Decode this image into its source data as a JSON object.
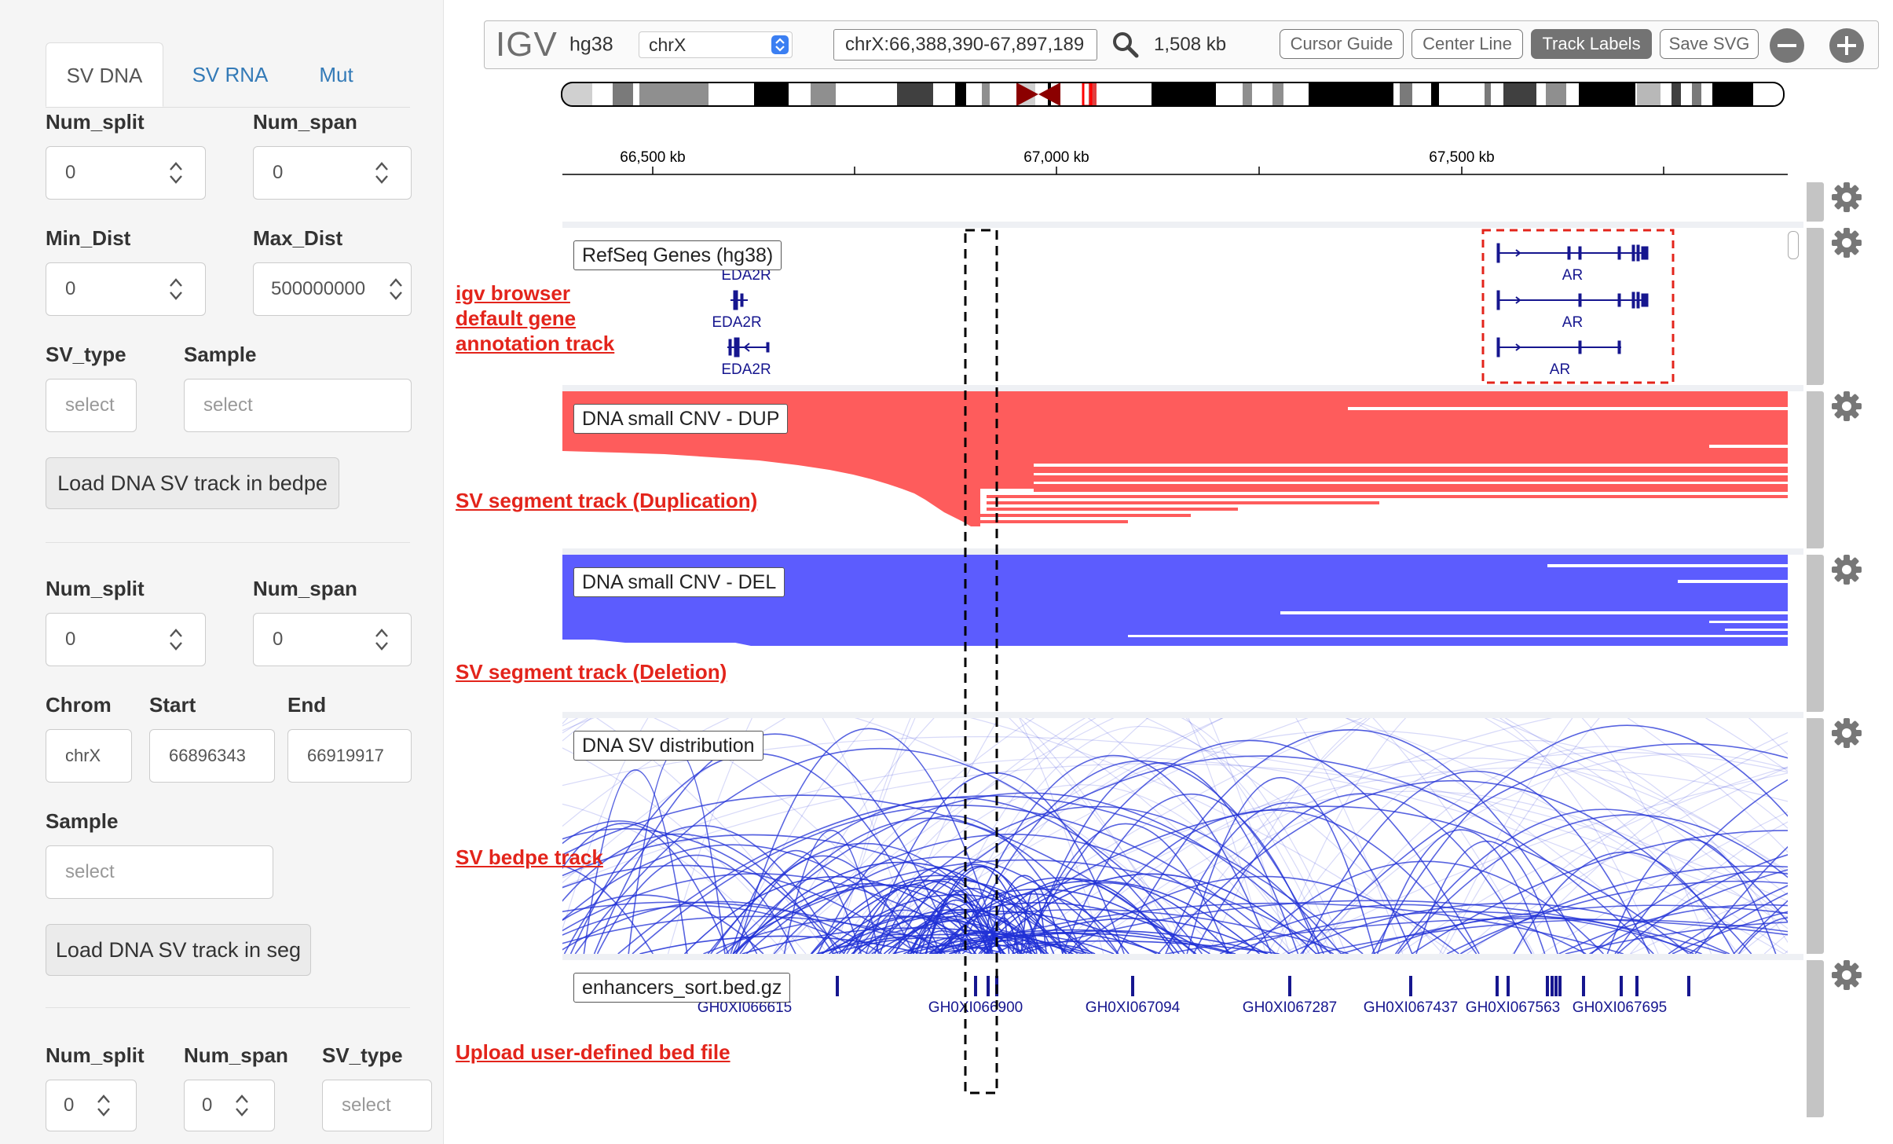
{
  "sidebar": {
    "tabs": [
      {
        "label": "SV DNA",
        "active": true
      },
      {
        "label": "SV RNA",
        "active": false
      },
      {
        "label": "Mut",
        "active": false
      }
    ],
    "section1": {
      "num_split_label": "Num_split",
      "num_split_value": "0",
      "num_span_label": "Num_span",
      "num_span_value": "0",
      "min_dist_label": "Min_Dist",
      "min_dist_value": "0",
      "max_dist_label": "Max_Dist",
      "max_dist_value": "500000000",
      "sv_type_label": "SV_type",
      "sv_type_placeholder": "select",
      "sample_label": "Sample",
      "sample_placeholder": "select",
      "load_button": "Load DNA SV track in bedpe"
    },
    "section2": {
      "num_split_label": "Num_split",
      "num_split_value": "0",
      "num_span_label": "Num_span",
      "num_span_value": "0",
      "chrom_label": "Chrom",
      "chrom_value": "chrX",
      "start_label": "Start",
      "start_value": "66896343",
      "end_label": "End",
      "end_value": "66919917",
      "sample_label": "Sample",
      "sample_placeholder": "select",
      "load_button": "Load DNA SV track in seg"
    },
    "section3": {
      "num_split_label": "Num_split",
      "num_split_value": "0",
      "num_span_label": "Num_span",
      "num_span_value": "0",
      "sv_type_label": "SV_type",
      "sv_type_placeholder": "select"
    }
  },
  "igv": {
    "logo": "IGV",
    "genome": "hg38",
    "chromosome": "chrX",
    "locus": "chrX:66,388,390-67,897,189",
    "width_label": "1,508 kb",
    "buttons": [
      {
        "label": "Cursor Guide",
        "active": false
      },
      {
        "label": "Center Line",
        "active": false
      },
      {
        "label": "Track Labels",
        "active": true
      },
      {
        "label": "Save SVG",
        "active": false
      }
    ],
    "ruler_ticks": [
      "66,500 kb",
      "67,000 kb",
      "67,500 kb"
    ],
    "tracks": {
      "refseq": {
        "label": "RefSeq Genes (hg38)",
        "genes_left": [
          "EDA2R",
          "EDA2R",
          "EDA2R"
        ],
        "genes_right": [
          "AR",
          "AR",
          "AR"
        ]
      },
      "dup": {
        "label": "DNA small CNV - DUP"
      },
      "del": {
        "label": "DNA small CNV - DEL"
      },
      "sv": {
        "label": "DNA SV distribution"
      },
      "enh": {
        "label": "enhancers_sort.bed.gz",
        "features": [
          "GH0XI066615",
          "GH0XI066900",
          "GH0XI067094",
          "GH0XI067287",
          "GH0XI067437",
          "GH0XI067563",
          "GH0XI067695"
        ]
      }
    },
    "colors": {
      "dup": "#fe5c5c",
      "del": "#5c5cfe",
      "gene": "#16168f",
      "arc": "#1f2fd6",
      "annotation": "#e3241b"
    }
  },
  "annotations": {
    "gene_track": [
      "igv browser",
      "default gene",
      "annotation track"
    ],
    "dup_track": "SV segment track (Duplication)",
    "del_track": "SV segment track (Deletion)",
    "bedpe_track": "SV bedpe track",
    "bed_track": "Upload user-defined bed file"
  }
}
